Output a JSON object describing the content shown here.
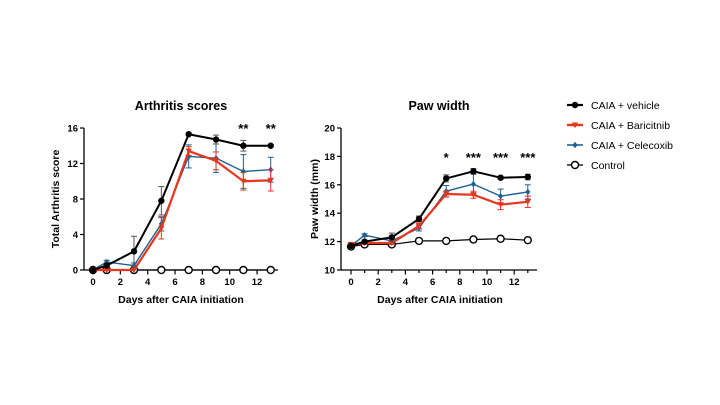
{
  "legend": {
    "position": "right",
    "entries": [
      {
        "name": "CAIA + vehicle",
        "color": "#000000",
        "marker": "filled-circle"
      },
      {
        "name": "CAIA + Baricitnib",
        "color": "#e8361f",
        "marker": "filled-triangle-down"
      },
      {
        "name": "CAIA + Celecoxib",
        "color": "#1f5f95",
        "marker": "filled-diamond"
      },
      {
        "name": "Control",
        "color": "#000000",
        "marker": "open-circle"
      }
    ]
  },
  "chart_data": [
    {
      "type": "line",
      "title": "Arthritis scores",
      "xlabel": "Days after CAIA initiation",
      "ylabel": "Total Arthritis score",
      "xlim": [
        -0.5,
        14
      ],
      "ylim": [
        0,
        16
      ],
      "xticks": [
        0,
        2,
        4,
        6,
        8,
        10,
        12
      ],
      "yticks": [
        0,
        4,
        8,
        12,
        16
      ],
      "grid": false,
      "x": [
        0,
        1,
        3,
        5,
        7,
        9,
        11,
        13
      ],
      "series": [
        {
          "name": "CAIA + vehicle",
          "values": [
            0,
            0.5,
            2.1,
            7.8,
            15.3,
            14.7,
            14.0,
            14.0
          ],
          "errors": [
            0,
            0,
            1.7,
            1.6,
            0.1,
            0.5,
            0.6,
            0.1
          ]
        },
        {
          "name": "CAIA + Baricitnib",
          "values": [
            0,
            0,
            0,
            4.7,
            13.4,
            12.3,
            10.0,
            10.1
          ],
          "errors": [
            0,
            0,
            0,
            1.2,
            0.5,
            1.0,
            1.0,
            1.2
          ]
        },
        {
          "name": "CAIA + Celecoxib",
          "values": [
            0,
            0.9,
            0.5,
            5.2,
            12.8,
            12.6,
            11.1,
            11.3
          ],
          "errors": [
            0,
            0.2,
            0.3,
            0.8,
            1.3,
            1.6,
            1.9,
            1.4
          ]
        },
        {
          "name": "Control",
          "values": [
            0,
            0,
            0,
            0,
            0,
            0,
            0,
            0
          ],
          "errors": [
            0,
            0,
            0,
            0,
            0,
            0,
            0,
            0
          ]
        }
      ],
      "annotations": [
        {
          "x": 11,
          "text": "**"
        },
        {
          "x": 13,
          "text": "**"
        }
      ]
    },
    {
      "type": "line",
      "title": "Paw width",
      "xlabel": "Days after CAIA initiation",
      "ylabel": "Paw width  (mm)",
      "xlim": [
        -0.5,
        14
      ],
      "ylim": [
        10,
        20
      ],
      "xticks": [
        0,
        2,
        4,
        6,
        8,
        10,
        12
      ],
      "yticks": [
        10,
        12,
        14,
        16,
        18,
        20
      ],
      "grid": false,
      "x": [
        0,
        1,
        3,
        5,
        7,
        9,
        11,
        13
      ],
      "series": [
        {
          "name": "CAIA + vehicle",
          "values": [
            11.7,
            12.0,
            12.3,
            13.6,
            16.45,
            16.95,
            16.5,
            16.55
          ],
          "errors": [
            0.1,
            0.1,
            0.3,
            0.2,
            0.25,
            0.2,
            0.1,
            0.2
          ]
        },
        {
          "name": "CAIA + Baricitnib",
          "values": [
            11.8,
            11.9,
            11.9,
            13.1,
            15.35,
            15.3,
            14.6,
            14.8
          ],
          "errors": [
            0.1,
            0.1,
            0.1,
            0.2,
            0.2,
            0.25,
            0.35,
            0.4
          ]
        },
        {
          "name": "CAIA + Celecoxib",
          "values": [
            11.7,
            12.45,
            12.05,
            12.95,
            15.55,
            16.05,
            15.2,
            15.5
          ],
          "errors": [
            0.1,
            0.1,
            0.2,
            0.2,
            0.4,
            0.7,
            0.5,
            0.5
          ]
        },
        {
          "name": "Control",
          "values": [
            11.65,
            11.8,
            11.8,
            12.05,
            12.05,
            12.15,
            12.2,
            12.1
          ],
          "errors": [
            0,
            0,
            0,
            0,
            0,
            0,
            0,
            0
          ]
        }
      ],
      "annotations": [
        {
          "x": 7,
          "text": "*"
        },
        {
          "x": 9,
          "text": "***"
        },
        {
          "x": 11,
          "text": "***"
        },
        {
          "x": 13,
          "text": "***"
        }
      ]
    }
  ]
}
